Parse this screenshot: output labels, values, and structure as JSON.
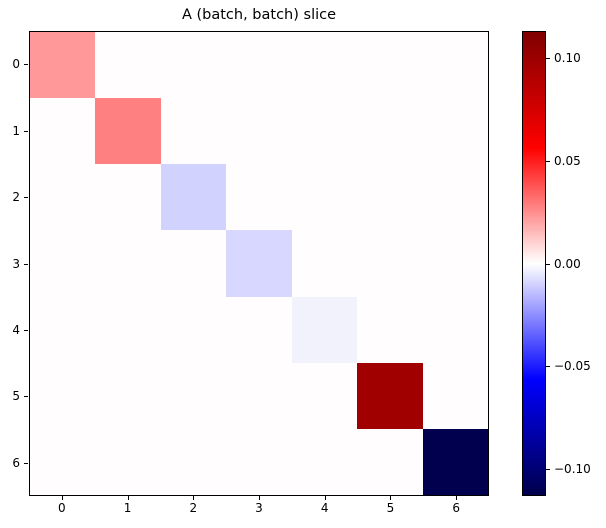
{
  "chart_data": {
    "type": "heatmap",
    "title": "A (batch, batch) slice",
    "grid_size": 7,
    "x_tick_labels": [
      "0",
      "1",
      "2",
      "3",
      "4",
      "5",
      "6"
    ],
    "y_tick_labels": [
      "0",
      "1",
      "2",
      "3",
      "4",
      "5",
      "6"
    ],
    "off_diagonal_value": 0.0,
    "background_value_color": "#fffdfd",
    "colormap": "seismic",
    "diagonal_cells": [
      {
        "row": 0,
        "col": 0,
        "value": 0.023,
        "color": "#ff9898"
      },
      {
        "row": 1,
        "col": 1,
        "value": 0.028,
        "color": "#ff8080"
      },
      {
        "row": 2,
        "col": 2,
        "value": -0.01,
        "color": "#d2d2ff"
      },
      {
        "row": 3,
        "col": 3,
        "value": -0.009,
        "color": "#d7d7ff"
      },
      {
        "row": 4,
        "col": 4,
        "value": -0.003,
        "color": "#f2f2fd"
      },
      {
        "row": 5,
        "col": 5,
        "value": 0.099,
        "color": "#a00000"
      },
      {
        "row": 6,
        "col": 6,
        "value": -0.113,
        "color": "#00004e"
      }
    ],
    "colorbar": {
      "vmin": -0.113,
      "vmax": 0.113,
      "ticks": [
        {
          "value": 0.1,
          "label": "0.10"
        },
        {
          "value": 0.05,
          "label": "0.05"
        },
        {
          "value": 0.0,
          "label": "0.00"
        },
        {
          "value": -0.05,
          "label": "−0.05"
        },
        {
          "value": -0.1,
          "label": "−0.10"
        }
      ],
      "gradient_stops": [
        {
          "pos": 0.0,
          "color": "#00004c"
        },
        {
          "pos": 0.25,
          "color": "#0000ff"
        },
        {
          "pos": 0.5,
          "color": "#ffffff"
        },
        {
          "pos": 0.75,
          "color": "#ff0000"
        },
        {
          "pos": 1.0,
          "color": "#7f0000"
        }
      ]
    }
  }
}
